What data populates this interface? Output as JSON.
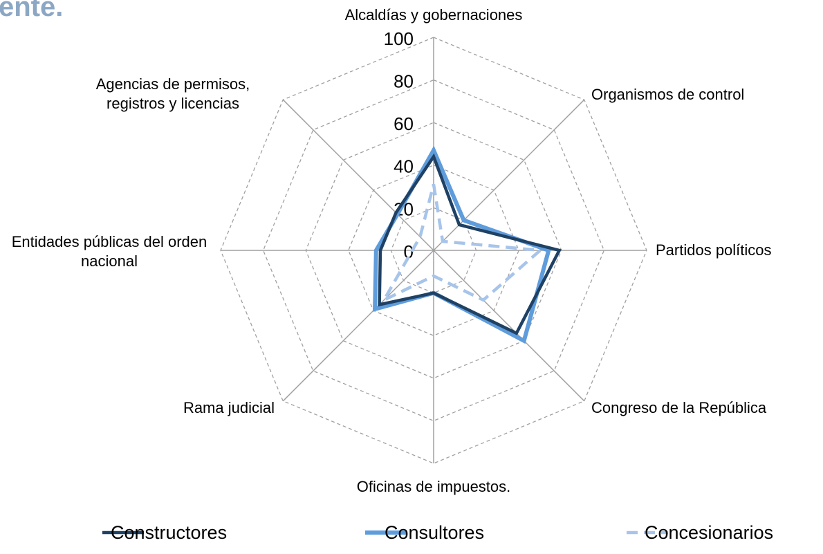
{
  "chart_data": {
    "type": "radar",
    "title": "ente.",
    "categories": [
      "Alcaldías y gobernaciones",
      "Organismos de control",
      "Partidos políticos",
      "Congreso de la República",
      "Oficinas de impuestos.",
      "Rama judicial",
      "Entidades públicas del orden nacional",
      "Agencias de permisos, registros y licencias"
    ],
    "series": [
      {
        "name": "Constructores",
        "color": "#1f4164",
        "dash": false,
        "values": [
          44,
          17,
          59,
          55,
          20,
          36,
          25,
          25
        ]
      },
      {
        "name": "Consultores",
        "color": "#5f9cdc",
        "dash": false,
        "values": [
          47,
          20,
          54,
          60,
          20,
          39,
          27,
          24
        ]
      },
      {
        "name": "Concesionarios",
        "color": "#a7c4ea",
        "dash": true,
        "values": [
          31,
          6,
          50,
          33,
          12,
          33,
          10,
          9
        ]
      }
    ],
    "ylim": [
      0,
      100
    ],
    "yticks": [
      0,
      20,
      40,
      60,
      80,
      100
    ],
    "grid": true,
    "legend": "bottom"
  }
}
